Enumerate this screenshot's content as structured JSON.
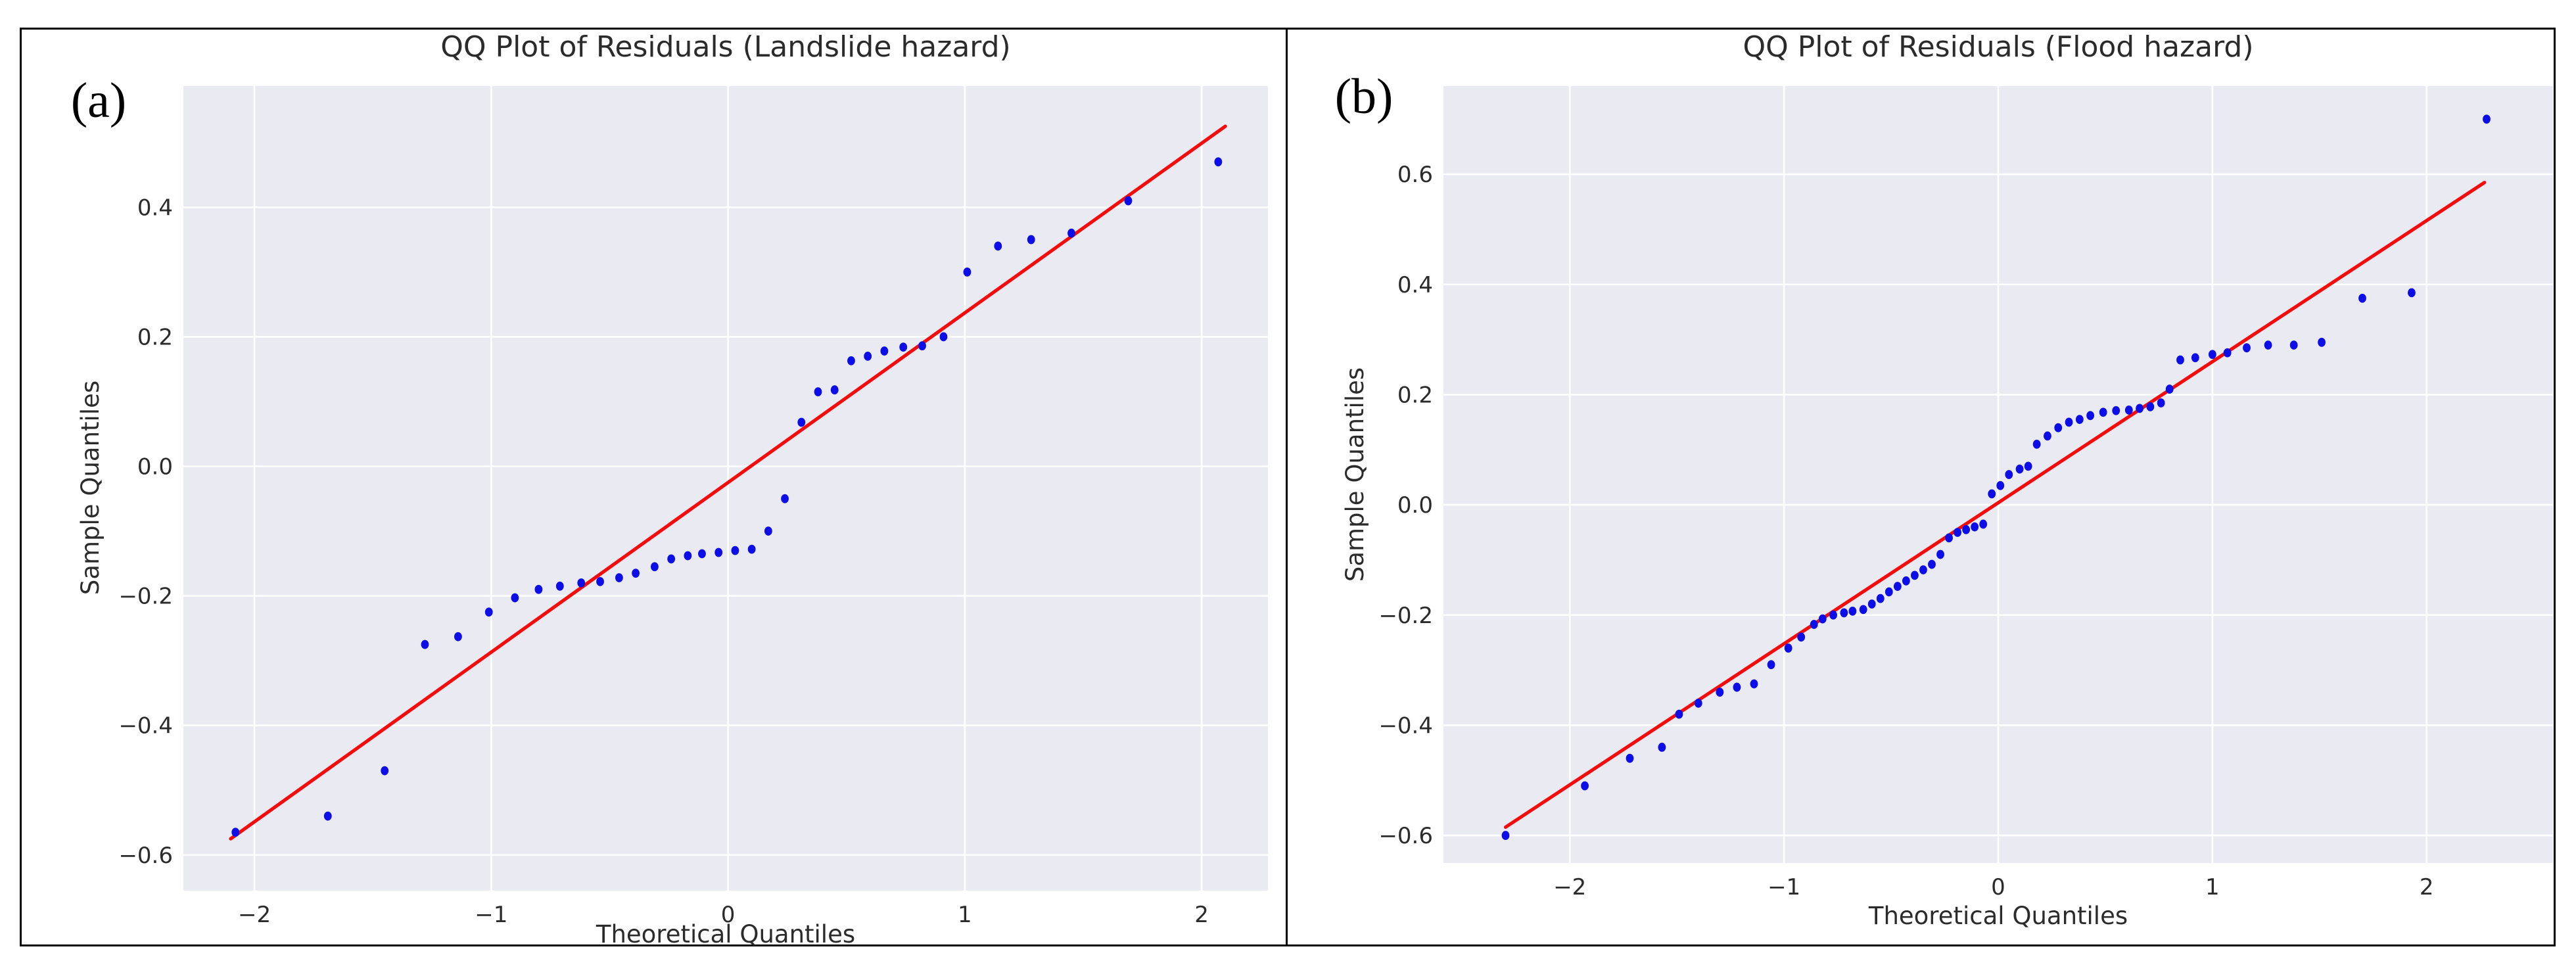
{
  "figure": {
    "background": "#ffffff",
    "border_color": "#000000",
    "panel_bg": "#eaeaf2",
    "grid_color": "#ffffff",
    "point_color": "#0d0de8",
    "line_color": "#f40c0c",
    "text_color": "#2b2b2b"
  },
  "panels": [
    {
      "label": "(a)",
      "title": "QQ Plot of Residuals (Landslide hazard)",
      "xlabel": "Theoretical Quantiles",
      "ylabel": "Sample Quantiles"
    },
    {
      "label": "(b)",
      "title": "QQ Plot of Residuals (Flood hazard)",
      "xlabel": "Theoretical Quantiles",
      "ylabel": "Sample Quantiles"
    }
  ],
  "chart_data": [
    {
      "type": "scatter",
      "title": "QQ Plot of Residuals (Landslide hazard)",
      "xlabel": "Theoretical Quantiles",
      "ylabel": "Sample Quantiles",
      "xlim": [
        -2.3,
        2.28
      ],
      "ylim": [
        -0.655,
        0.587
      ],
      "xticks": [
        -2,
        -1,
        0,
        1,
        2
      ],
      "yticks": [
        -0.6,
        -0.4,
        -0.2,
        0.0,
        0.2,
        0.4
      ],
      "grid": true,
      "legend": "none",
      "points": {
        "x": [
          -2.08,
          -1.69,
          -1.45,
          -1.28,
          -1.14,
          -1.01,
          -0.9,
          -0.8,
          -0.71,
          -0.62,
          -0.54,
          -0.46,
          -0.39,
          -0.31,
          -0.24,
          -0.17,
          -0.11,
          -0.04,
          0.03,
          0.1,
          0.17,
          0.24,
          0.31,
          0.38,
          0.45,
          0.52,
          0.59,
          0.66,
          0.74,
          0.82,
          0.91,
          1.01,
          1.14,
          1.28,
          1.45,
          1.69,
          2.07
        ],
        "y": [
          -0.565,
          -0.54,
          -0.47,
          -0.275,
          -0.263,
          -0.225,
          -0.203,
          -0.19,
          -0.185,
          -0.18,
          -0.178,
          -0.172,
          -0.165,
          -0.155,
          -0.143,
          -0.138,
          -0.135,
          -0.133,
          -0.13,
          -0.128,
          -0.1,
          -0.05,
          0.068,
          0.115,
          0.118,
          0.163,
          0.17,
          0.178,
          0.184,
          0.186,
          0.2,
          0.3,
          0.34,
          0.35,
          0.36,
          0.41,
          0.47
        ]
      },
      "fit_line": {
        "x": [
          -2.1,
          2.1
        ],
        "y": [
          -0.575,
          0.525
        ]
      }
    },
    {
      "type": "scatter",
      "title": "QQ Plot of Residuals (Flood hazard)",
      "xlabel": "Theoretical Quantiles",
      "ylabel": "Sample Quantiles",
      "xlim": [
        -2.59,
        2.59
      ],
      "ylim": [
        -0.65,
        0.76
      ],
      "xticks": [
        -2,
        -1,
        0,
        1,
        2
      ],
      "yticks": [
        -0.6,
        -0.4,
        -0.2,
        0.0,
        0.2,
        0.4,
        0.6
      ],
      "grid": true,
      "legend": "none",
      "points": {
        "x": [
          -2.3,
          -1.93,
          -1.72,
          -1.57,
          -1.49,
          -1.4,
          -1.3,
          -1.22,
          -1.14,
          -1.06,
          -0.98,
          -0.92,
          -0.86,
          -0.82,
          -0.77,
          -0.72,
          -0.68,
          -0.63,
          -0.59,
          -0.55,
          -0.51,
          -0.47,
          -0.43,
          -0.39,
          -0.35,
          -0.31,
          -0.27,
          -0.23,
          -0.19,
          -0.15,
          -0.11,
          -0.07,
          -0.03,
          0.01,
          0.05,
          0.1,
          0.14,
          0.18,
          0.23,
          0.28,
          0.33,
          0.38,
          0.43,
          0.49,
          0.55,
          0.61,
          0.66,
          0.71,
          0.76,
          0.8,
          0.85,
          0.92,
          1.0,
          1.07,
          1.16,
          1.26,
          1.38,
          1.51,
          1.7,
          1.93,
          2.28
        ],
        "y": [
          -0.6,
          -0.51,
          -0.46,
          -0.44,
          -0.38,
          -0.36,
          -0.34,
          -0.331,
          -0.325,
          -0.29,
          -0.26,
          -0.24,
          -0.217,
          -0.207,
          -0.2,
          -0.196,
          -0.193,
          -0.19,
          -0.18,
          -0.17,
          -0.158,
          -0.148,
          -0.138,
          -0.128,
          -0.118,
          -0.108,
          -0.09,
          -0.06,
          -0.05,
          -0.045,
          -0.04,
          -0.035,
          0.02,
          0.035,
          0.055,
          0.065,
          0.07,
          0.11,
          0.125,
          0.14,
          0.15,
          0.155,
          0.162,
          0.168,
          0.171,
          0.172,
          0.175,
          0.178,
          0.185,
          0.21,
          0.263,
          0.267,
          0.273,
          0.276,
          0.285,
          0.29,
          0.29,
          0.295,
          0.375,
          0.385,
          0.7
        ]
      },
      "fit_line": {
        "x": [
          -2.3,
          2.27
        ],
        "y": [
          -0.585,
          0.585
        ]
      }
    }
  ]
}
